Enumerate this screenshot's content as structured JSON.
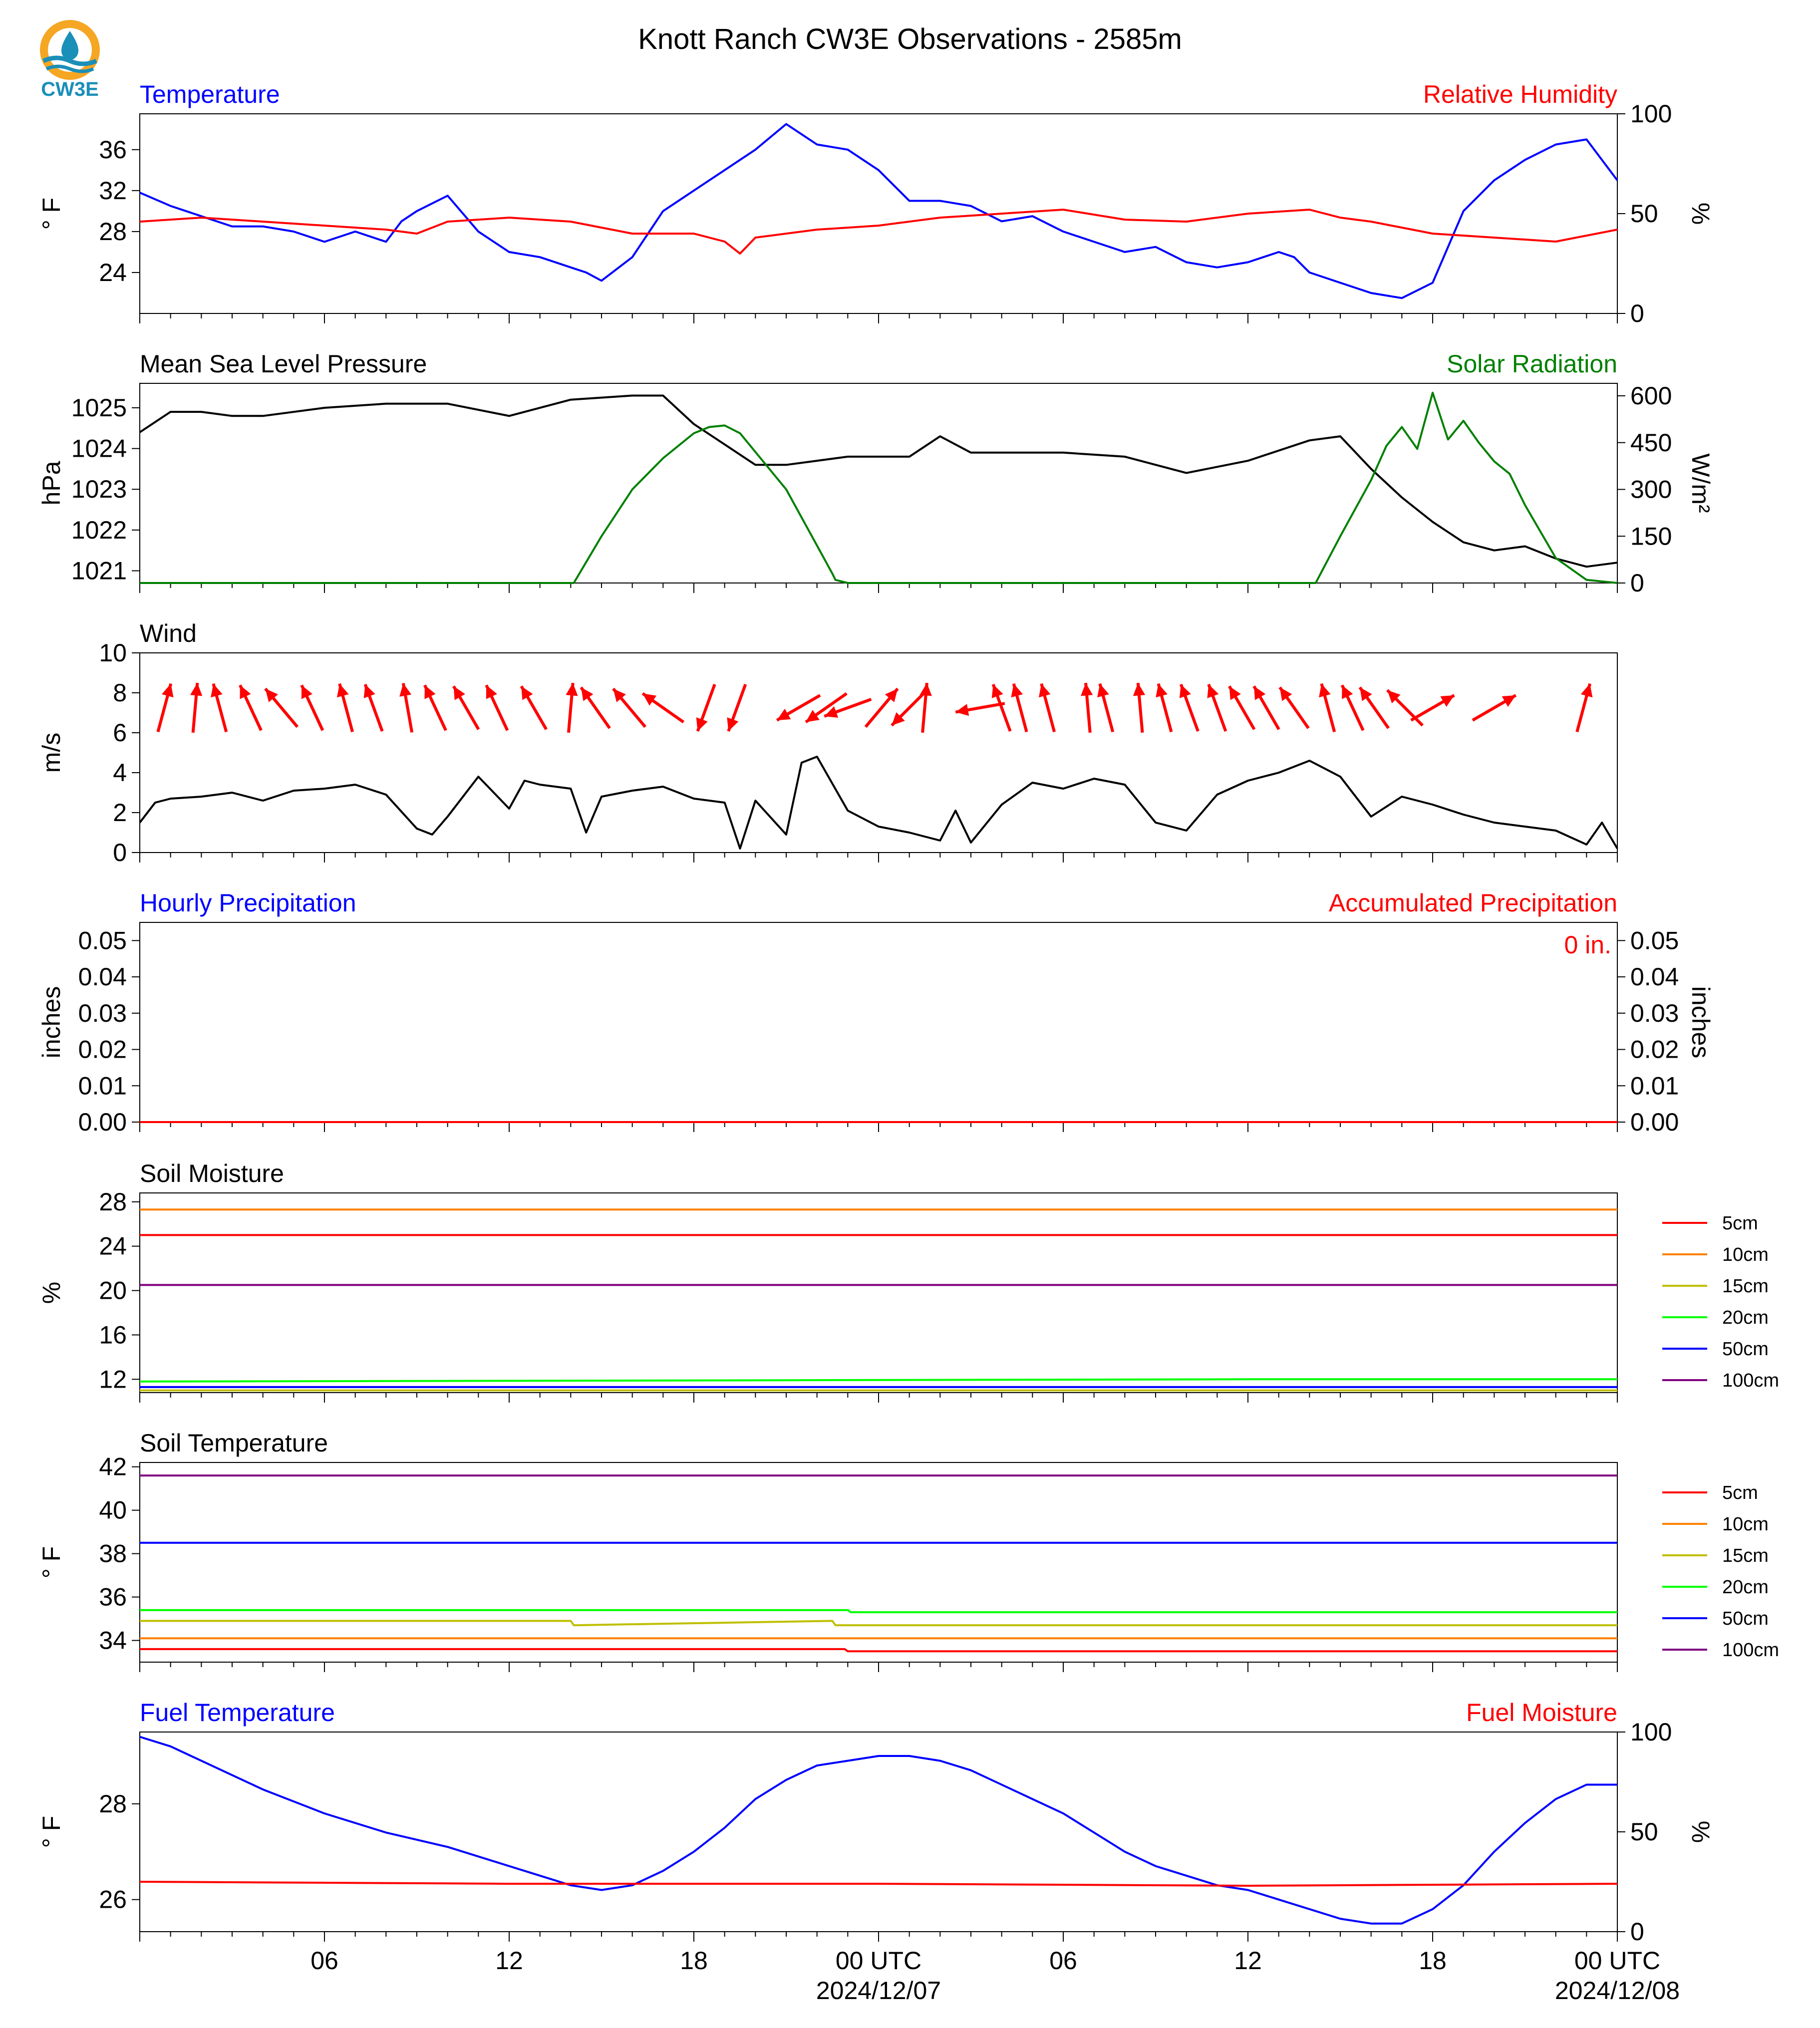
{
  "header": {
    "title": "Knott Ranch CW3E Observations - 2585m",
    "logo_text": "CW3E"
  },
  "colors": {
    "blue": "#0000ff",
    "red": "#ff0000",
    "green": "#008000",
    "black": "#000000",
    "orange": "#ff8000",
    "olive": "#bfbf00",
    "lime": "#00ff00",
    "purple": "#800080",
    "logo_teal": "#1a8fb8",
    "logo_orange": "#f5a623"
  },
  "x_axis": {
    "hour_labels": [
      "06",
      "12",
      "18",
      "00 UTC",
      "06",
      "12",
      "18",
      "00 UTC"
    ],
    "date_labels": [
      "2024/12/07",
      "2024/12/08"
    ]
  },
  "chart_data": [
    {
      "id": "temperature",
      "type": "line",
      "left_title": "Temperature",
      "right_title": "Relative Humidity",
      "ylabel": "° F",
      "ylabel_right": "%",
      "ylim": [
        20,
        39.5
      ],
      "yticks": [
        "24",
        "28",
        "32",
        "36"
      ],
      "ylim_right": [
        0,
        100
      ],
      "yticks_right": [
        "0",
        "50",
        "100"
      ],
      "series": [
        {
          "axis": "left",
          "color": "blue",
          "x": [
            0,
            1,
            2,
            3,
            4,
            5,
            6,
            7,
            8,
            8.5,
            9,
            10,
            11,
            12,
            13,
            14,
            14.5,
            15,
            16,
            17,
            18,
            19,
            20,
            21,
            22,
            23,
            24,
            25,
            26,
            27,
            28,
            29,
            30,
            31,
            32,
            33,
            34,
            35,
            36,
            37,
            37.5,
            38,
            39,
            40,
            41,
            42,
            43,
            44,
            45,
            46,
            47,
            48
          ],
          "y": [
            31.8,
            30.5,
            29.5,
            28.5,
            28.5,
            28,
            27,
            28,
            27,
            29,
            30,
            31.5,
            28,
            26,
            25.5,
            24.5,
            24,
            23.2,
            25.5,
            30,
            32,
            34,
            36,
            38.5,
            36.5,
            36,
            34,
            31,
            31,
            30.5,
            29,
            29.5,
            28,
            27,
            26,
            26.5,
            25,
            24.5,
            25,
            26,
            25.5,
            24,
            23,
            22,
            21.5,
            23,
            30,
            33,
            35,
            36.5,
            37,
            33
          ]
        },
        {
          "axis": "right",
          "color": "red",
          "x": [
            0,
            2,
            4,
            6,
            8,
            9,
            10,
            12,
            14,
            15,
            16,
            18,
            19,
            19.5,
            20,
            22,
            24,
            26,
            28,
            30,
            32,
            34,
            36,
            38,
            39,
            40,
            42,
            44,
            46,
            48
          ],
          "y": [
            46,
            48,
            46,
            44,
            42,
            40,
            46,
            48,
            46,
            43,
            40,
            40,
            36,
            30,
            38,
            42,
            44,
            48,
            50,
            52,
            47,
            46,
            50,
            52,
            48,
            46,
            40,
            38,
            36,
            42
          ]
        }
      ]
    },
    {
      "id": "pressure",
      "type": "line",
      "left_title": "Mean Sea Level Pressure",
      "right_title": "Solar Radiation",
      "ylabel": "hPa",
      "ylabel_right": "W/m²",
      "ylim": [
        1020.7,
        1025.6
      ],
      "yticks": [
        "1021",
        "1022",
        "1023",
        "1024",
        "1025"
      ],
      "ylim_right": [
        0,
        640
      ],
      "yticks_right": [
        "0",
        "150",
        "300",
        "450",
        "600"
      ],
      "series": [
        {
          "axis": "left",
          "color": "black",
          "x": [
            0,
            1,
            2,
            3,
            4,
            6,
            8,
            10,
            12,
            14,
            16,
            17,
            18,
            19,
            20,
            21,
            22,
            23,
            24,
            25,
            26,
            27,
            28,
            30,
            32,
            34,
            36,
            38,
            39,
            40,
            41,
            42,
            43,
            44,
            45,
            46,
            47,
            48
          ],
          "y": [
            1024.4,
            1024.9,
            1024.9,
            1024.8,
            1024.8,
            1025.0,
            1025.1,
            1025.1,
            1024.8,
            1025.2,
            1025.3,
            1025.3,
            1024.6,
            1024.1,
            1023.6,
            1023.6,
            1023.7,
            1023.8,
            1023.8,
            1023.8,
            1024.3,
            1023.9,
            1023.9,
            1023.9,
            1023.8,
            1023.4,
            1023.7,
            1024.2,
            1024.3,
            1023.5,
            1022.8,
            1022.2,
            1021.7,
            1021.5,
            1021.6,
            1021.3,
            1021.1,
            1021.2
          ]
        },
        {
          "axis": "right",
          "color": "green",
          "x": [
            0,
            14.1,
            15,
            16,
            17,
            18,
            18.5,
            19,
            19.5,
            20,
            21,
            22,
            22.5,
            22.6,
            23,
            38.2,
            39,
            40,
            40.5,
            41,
            41.5,
            42,
            42.5,
            43,
            43.5,
            44,
            44.5,
            45,
            46,
            47,
            48
          ],
          "y": [
            0,
            0,
            150,
            300,
            400,
            480,
            500,
            505,
            480,
            420,
            300,
            120,
            30,
            10,
            0,
            0,
            150,
            330,
            440,
            500,
            430,
            610,
            460,
            520,
            450,
            390,
            350,
            250,
            80,
            10,
            0
          ]
        }
      ]
    },
    {
      "id": "wind",
      "type": "line",
      "left_title": "Wind",
      "ylabel": "m/s",
      "ylim": [
        0,
        10
      ],
      "yticks": [
        "0",
        "2",
        "4",
        "6",
        "8",
        "10"
      ],
      "series": [
        {
          "axis": "left",
          "color": "black",
          "name": "",
          "x": [
            0,
            0.5,
            1,
            2,
            3,
            4,
            5,
            6,
            7,
            8,
            9,
            9.5,
            10,
            11,
            12,
            12.5,
            13,
            14,
            14.5,
            15,
            16,
            17,
            18,
            19,
            19.5,
            20,
            21,
            21.5,
            22,
            23,
            24,
            25,
            26,
            26.5,
            27,
            28,
            29,
            30,
            31,
            32,
            33,
            34,
            35,
            36,
            37,
            38,
            39,
            40,
            41,
            42,
            43,
            44,
            45,
            46,
            47,
            47.5,
            48
          ],
          "y": [
            1.5,
            2.5,
            2.7,
            2.8,
            3.0,
            2.6,
            3.1,
            3.2,
            3.4,
            2.9,
            1.2,
            0.9,
            1.8,
            3.8,
            2.2,
            3.6,
            3.4,
            3.2,
            1.0,
            2.8,
            3.1,
            3.3,
            2.7,
            2.5,
            0.2,
            2.6,
            0.9,
            4.5,
            4.8,
            2.1,
            1.3,
            1.0,
            0.6,
            2.1,
            0.5,
            2.4,
            3.5,
            3.2,
            3.7,
            3.4,
            1.5,
            1.1,
            2.9,
            3.6,
            4.0,
            4.6,
            3.8,
            1.8,
            2.8,
            2.4,
            1.9,
            1.5,
            1.3,
            1.1,
            0.4,
            1.5,
            0.2
          ]
        }
      ],
      "arrows": [
        {
          "x": 0.8,
          "dir": 15
        },
        {
          "x": 1.8,
          "dir": 5
        },
        {
          "x": 2.6,
          "dir": 345
        },
        {
          "x": 3.6,
          "dir": 335
        },
        {
          "x": 4.6,
          "dir": 320
        },
        {
          "x": 5.6,
          "dir": 335
        },
        {
          "x": 6.7,
          "dir": 345
        },
        {
          "x": 7.6,
          "dir": 340
        },
        {
          "x": 8.7,
          "dir": 350
        },
        {
          "x": 9.6,
          "dir": 335
        },
        {
          "x": 10.6,
          "dir": 330
        },
        {
          "x": 11.6,
          "dir": 335
        },
        {
          "x": 12.8,
          "dir": 330
        },
        {
          "x": 14.0,
          "dir": 5
        },
        {
          "x": 14.8,
          "dir": 325
        },
        {
          "x": 15.9,
          "dir": 320
        },
        {
          "x": 17.0,
          "dir": 305
        },
        {
          "x": 18.4,
          "dir": 200
        },
        {
          "x": 19.4,
          "dir": 200
        },
        {
          "x": 21.4,
          "dir": 240
        },
        {
          "x": 22.3,
          "dir": 235
        },
        {
          "x": 23.0,
          "dir": 250
        },
        {
          "x": 24.1,
          "dir": 40
        },
        {
          "x": 25.0,
          "dir": 225
        },
        {
          "x": 25.5,
          "dir": 5
        },
        {
          "x": 27.3,
          "dir": 260
        },
        {
          "x": 28.0,
          "dir": 340
        },
        {
          "x": 28.6,
          "dir": 345
        },
        {
          "x": 29.5,
          "dir": 345
        },
        {
          "x": 30.8,
          "dir": 355
        },
        {
          "x": 31.4,
          "dir": 345
        },
        {
          "x": 32.5,
          "dir": 355
        },
        {
          "x": 33.3,
          "dir": 345
        },
        {
          "x": 34.1,
          "dir": 340
        },
        {
          "x": 35.0,
          "dir": 340
        },
        {
          "x": 35.8,
          "dir": 330
        },
        {
          "x": 36.6,
          "dir": 330
        },
        {
          "x": 37.5,
          "dir": 325
        },
        {
          "x": 38.6,
          "dir": 345
        },
        {
          "x": 39.4,
          "dir": 335
        },
        {
          "x": 40.1,
          "dir": 325
        },
        {
          "x": 41.1,
          "dir": 315
        },
        {
          "x": 42.0,
          "dir": 60
        },
        {
          "x": 44.0,
          "dir": 60
        },
        {
          "x": 46.9,
          "dir": 15
        }
      ]
    },
    {
      "id": "precipitation",
      "type": "line",
      "left_title": "Hourly Precipitation",
      "right_title": "Accumulated Precipitation",
      "ylabel": "inches",
      "ylabel_right": "inches",
      "ylim": [
        0,
        0.055
      ],
      "yticks": [
        "0.00",
        "0.01",
        "0.02",
        "0.03",
        "0.04",
        "0.05"
      ],
      "ylim_right": [
        0,
        0.055
      ],
      "yticks_right": [
        "0.00",
        "0.01",
        "0.02",
        "0.03",
        "0.04",
        "0.05"
      ],
      "annotation": "0 in.",
      "series": [
        {
          "axis": "left",
          "color": "blue",
          "x": [
            0,
            48
          ],
          "y": [
            0,
            0
          ]
        },
        {
          "axis": "right",
          "color": "red",
          "x": [
            0,
            48
          ],
          "y": [
            0,
            0
          ]
        }
      ]
    },
    {
      "id": "soil_moisture",
      "type": "line",
      "left_title": "Soil Moisture",
      "ylabel": "%",
      "ylim": [
        10.8,
        28.8
      ],
      "yticks": [
        "12",
        "16",
        "20",
        "24",
        "28"
      ],
      "legend": [
        "5cm",
        "10cm",
        "15cm",
        "20cm",
        "50cm",
        "100cm"
      ],
      "series": [
        {
          "name": "5cm",
          "color": "red",
          "x": [
            0,
            48
          ],
          "y": [
            25.0,
            25.0
          ]
        },
        {
          "name": "10cm",
          "color": "orange",
          "x": [
            0,
            48
          ],
          "y": [
            27.3,
            27.3
          ]
        },
        {
          "name": "15cm",
          "color": "olive",
          "x": [
            0,
            48
          ],
          "y": [
            11.0,
            11.0
          ]
        },
        {
          "name": "20cm",
          "color": "lime",
          "x": [
            0,
            18,
            36,
            48
          ],
          "y": [
            11.8,
            11.9,
            12.0,
            12.0
          ]
        },
        {
          "name": "50cm",
          "color": "blue",
          "x": [
            0,
            48
          ],
          "y": [
            11.3,
            11.3
          ]
        },
        {
          "name": "100cm",
          "color": "purple",
          "x": [
            0,
            48
          ],
          "y": [
            20.5,
            20.5
          ]
        }
      ]
    },
    {
      "id": "soil_temperature",
      "type": "line",
      "left_title": "Soil Temperature",
      "ylabel": "° F",
      "ylim": [
        33,
        42.2
      ],
      "yticks": [
        "34",
        "36",
        "38",
        "40",
        "42"
      ],
      "legend": [
        "5cm",
        "10cm",
        "15cm",
        "20cm",
        "50cm",
        "100cm"
      ],
      "series": [
        {
          "name": "5cm",
          "color": "red",
          "x": [
            0,
            22.9,
            23,
            48
          ],
          "y": [
            33.6,
            33.6,
            33.5,
            33.5
          ]
        },
        {
          "name": "10cm",
          "color": "orange",
          "x": [
            0,
            48
          ],
          "y": [
            34.1,
            34.1
          ]
        },
        {
          "name": "15cm",
          "color": "olive",
          "x": [
            0,
            14,
            14.1,
            22.5,
            22.6,
            48
          ],
          "y": [
            34.9,
            34.9,
            34.7,
            34.9,
            34.7,
            34.7
          ]
        },
        {
          "name": "20cm",
          "color": "lime",
          "x": [
            0,
            23,
            23.1,
            48
          ],
          "y": [
            35.4,
            35.4,
            35.3,
            35.3
          ]
        },
        {
          "name": "50cm",
          "color": "blue",
          "x": [
            0,
            48
          ],
          "y": [
            38.5,
            38.5
          ]
        },
        {
          "name": "100cm",
          "color": "purple",
          "x": [
            0,
            48
          ],
          "y": [
            41.6,
            41.6
          ]
        }
      ]
    },
    {
      "id": "fuel",
      "type": "line",
      "left_title": "Fuel Temperature",
      "right_title": "Fuel Moisture",
      "ylabel": "° F",
      "ylabel_right": "%",
      "ylim": [
        25.33,
        29.5
      ],
      "yticks": [
        "26",
        "28"
      ],
      "ylim_right": [
        0,
        100
      ],
      "yticks_right": [
        "0",
        "50",
        "100"
      ],
      "series": [
        {
          "axis": "left",
          "color": "blue",
          "x": [
            0,
            1,
            2,
            4,
            6,
            8,
            10,
            12,
            13,
            14,
            15,
            16,
            17,
            18,
            19,
            20,
            21,
            22,
            23,
            24,
            25,
            26,
            27,
            28,
            29,
            30,
            31,
            32,
            33,
            34,
            35,
            36,
            37,
            38,
            39,
            40,
            41,
            42,
            43,
            44,
            45,
            46,
            47,
            48
          ],
          "y": [
            29.4,
            29.2,
            28.9,
            28.3,
            27.8,
            27.4,
            27.1,
            26.7,
            26.5,
            26.3,
            26.2,
            26.3,
            26.6,
            27.0,
            27.5,
            28.1,
            28.5,
            28.8,
            28.9,
            29.0,
            29.0,
            28.9,
            28.7,
            28.4,
            28.1,
            27.8,
            27.4,
            27.0,
            26.7,
            26.5,
            26.3,
            26.2,
            26.0,
            25.8,
            25.6,
            25.5,
            25.5,
            25.8,
            26.3,
            27.0,
            27.6,
            28.1,
            28.4,
            28.4
          ]
        },
        {
          "axis": "right",
          "color": "red",
          "x": [
            0,
            12,
            24,
            36,
            48
          ],
          "y": [
            25,
            24,
            24,
            23,
            24
          ]
        }
      ]
    }
  ]
}
